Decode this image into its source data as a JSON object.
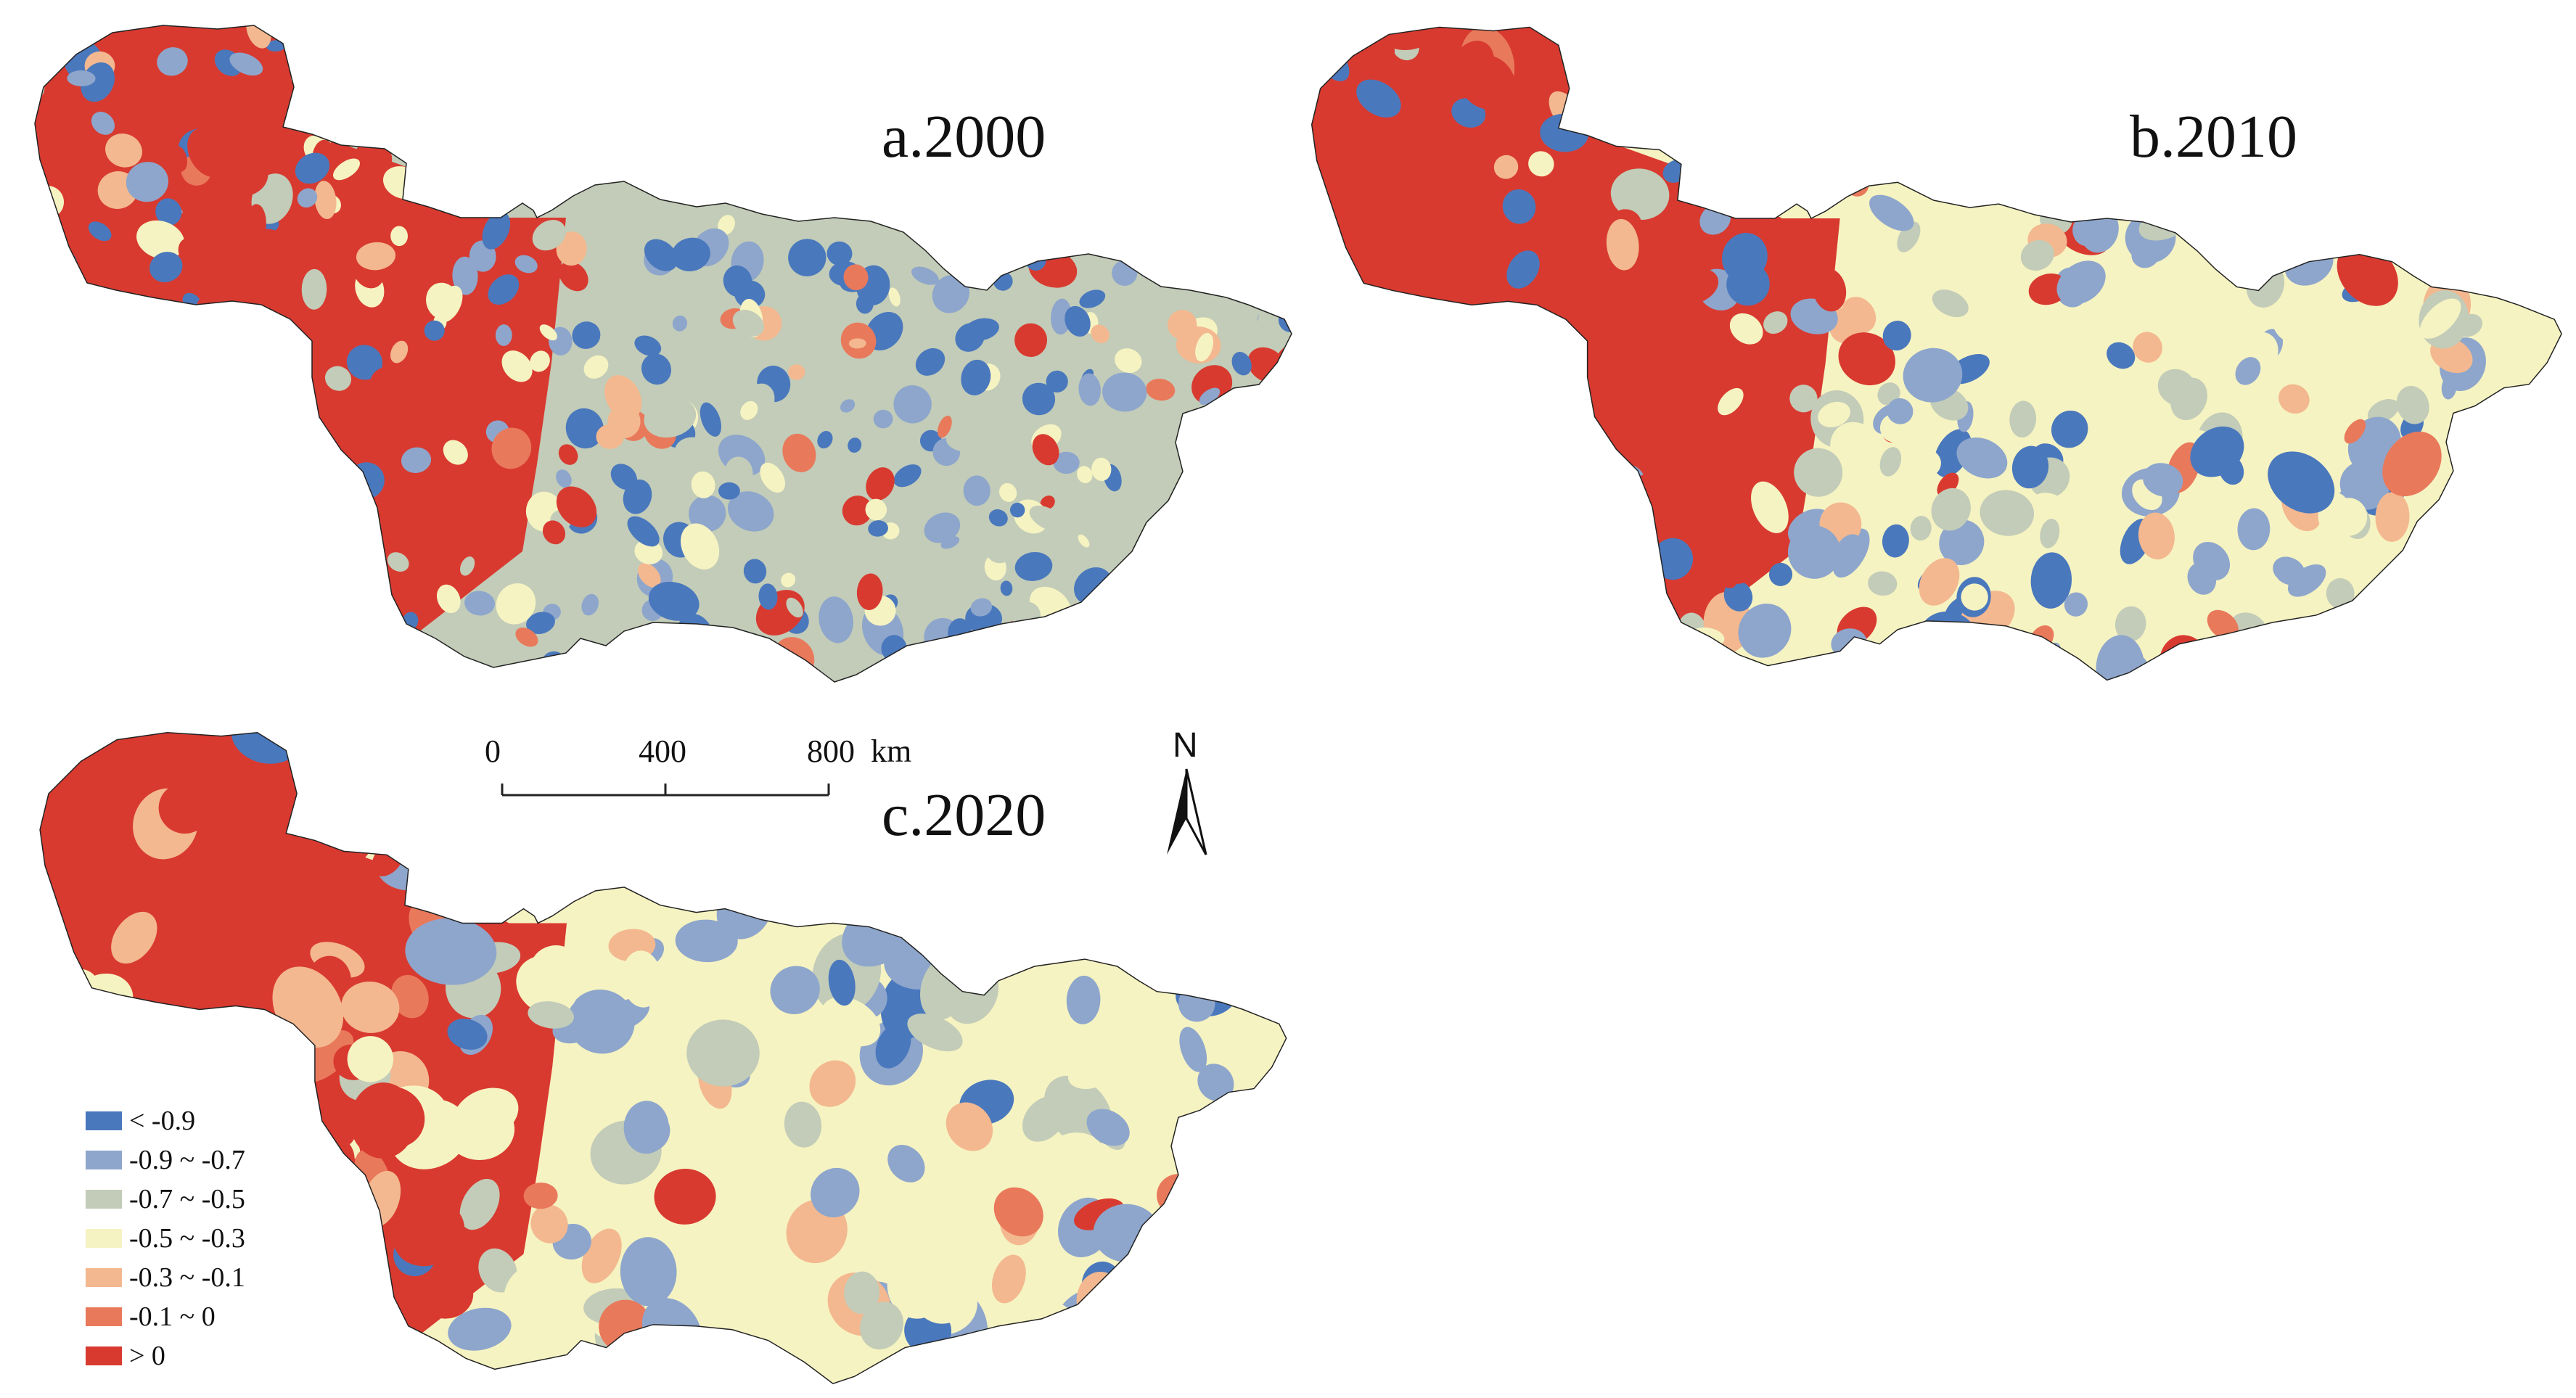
{
  "panels": [
    {
      "id": "a",
      "title": "a.2000"
    },
    {
      "id": "b",
      "title": "b.2010"
    },
    {
      "id": "c",
      "title": "c.2020"
    }
  ],
  "legend": [
    {
      "label": "< -0.9",
      "color": "#4a78bd"
    },
    {
      "label": "-0.9 ~ -0.7",
      "color": "#8ea6cc"
    },
    {
      "label": "-0.7 ~ -0.5",
      "color": "#c2ccb8"
    },
    {
      "label": "-0.5 ~ -0.3",
      "color": "#f6f3c2"
    },
    {
      "label": "-0.3 ~ -0.1",
      "color": "#f3b88f"
    },
    {
      "label": "-0.1 ~ 0",
      "color": "#e9795b"
    },
    {
      "label": "> 0",
      "color": "#d83a30"
    }
  ],
  "scale_bar": {
    "ticks": [
      "0",
      "400",
      "800"
    ],
    "unit": "km"
  },
  "north_arrow": {
    "label": "N"
  },
  "colors": {
    "outline": "#222222",
    "background": "#ffffff"
  }
}
